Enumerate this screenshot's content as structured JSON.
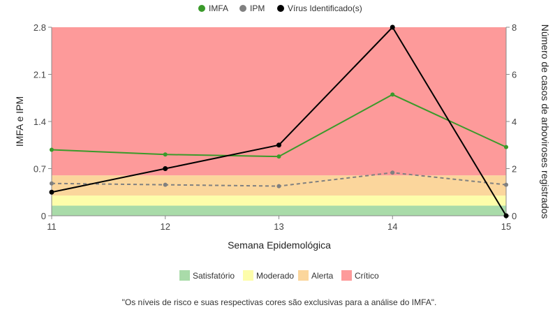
{
  "chart_data": {
    "type": "line",
    "title": "",
    "xlabel": "Semana Epidemológica",
    "ylabel_left": "IMFA e IPM",
    "ylabel_right": "Número de casos de arboviroses registrados",
    "x": [
      11,
      12,
      13,
      14,
      15
    ],
    "y_left_lim": [
      0,
      2.8
    ],
    "y_left_ticks": [
      0,
      0.7,
      1.4,
      2.1,
      2.8
    ],
    "y_left_tick_labels": [
      "0",
      "0.7",
      "1.4",
      "2.1",
      "2.8"
    ],
    "y_right_lim": [
      0,
      8
    ],
    "y_right_ticks": [
      0,
      2,
      4,
      6,
      8
    ],
    "series": [
      {
        "name": "IMFA",
        "axis": "left",
        "color": "#3a9a2a",
        "style": "solid",
        "values": [
          0.98,
          0.91,
          0.88,
          1.8,
          1.02
        ]
      },
      {
        "name": "IPM",
        "axis": "left",
        "color": "#808080",
        "style": "dashed",
        "values": [
          0.48,
          0.46,
          0.44,
          0.64,
          0.46
        ]
      },
      {
        "name": "Vírus Identificado(s)",
        "axis": "right",
        "color": "#000000",
        "style": "solid",
        "values": [
          1,
          2,
          3,
          8,
          0
        ]
      }
    ],
    "risk_bands": [
      {
        "name": "Satisfatório",
        "from": 0,
        "to": 0.15,
        "color": "#a9dba9"
      },
      {
        "name": "Moderado",
        "from": 0.15,
        "to": 0.3,
        "color": "#fdfdaa"
      },
      {
        "name": "Alerta",
        "from": 0.3,
        "to": 0.6,
        "color": "#fbd69c"
      },
      {
        "name": "Crítico",
        "from": 0.6,
        "to": 2.8,
        "color": "#fd9a9a"
      }
    ],
    "legend_position": "top-center",
    "bands_legend_position": "bottom-center",
    "grid": false,
    "footnote": "\"Os níveis de risco e suas respectivas cores são exclusivas para a análise do IMFA\"."
  }
}
